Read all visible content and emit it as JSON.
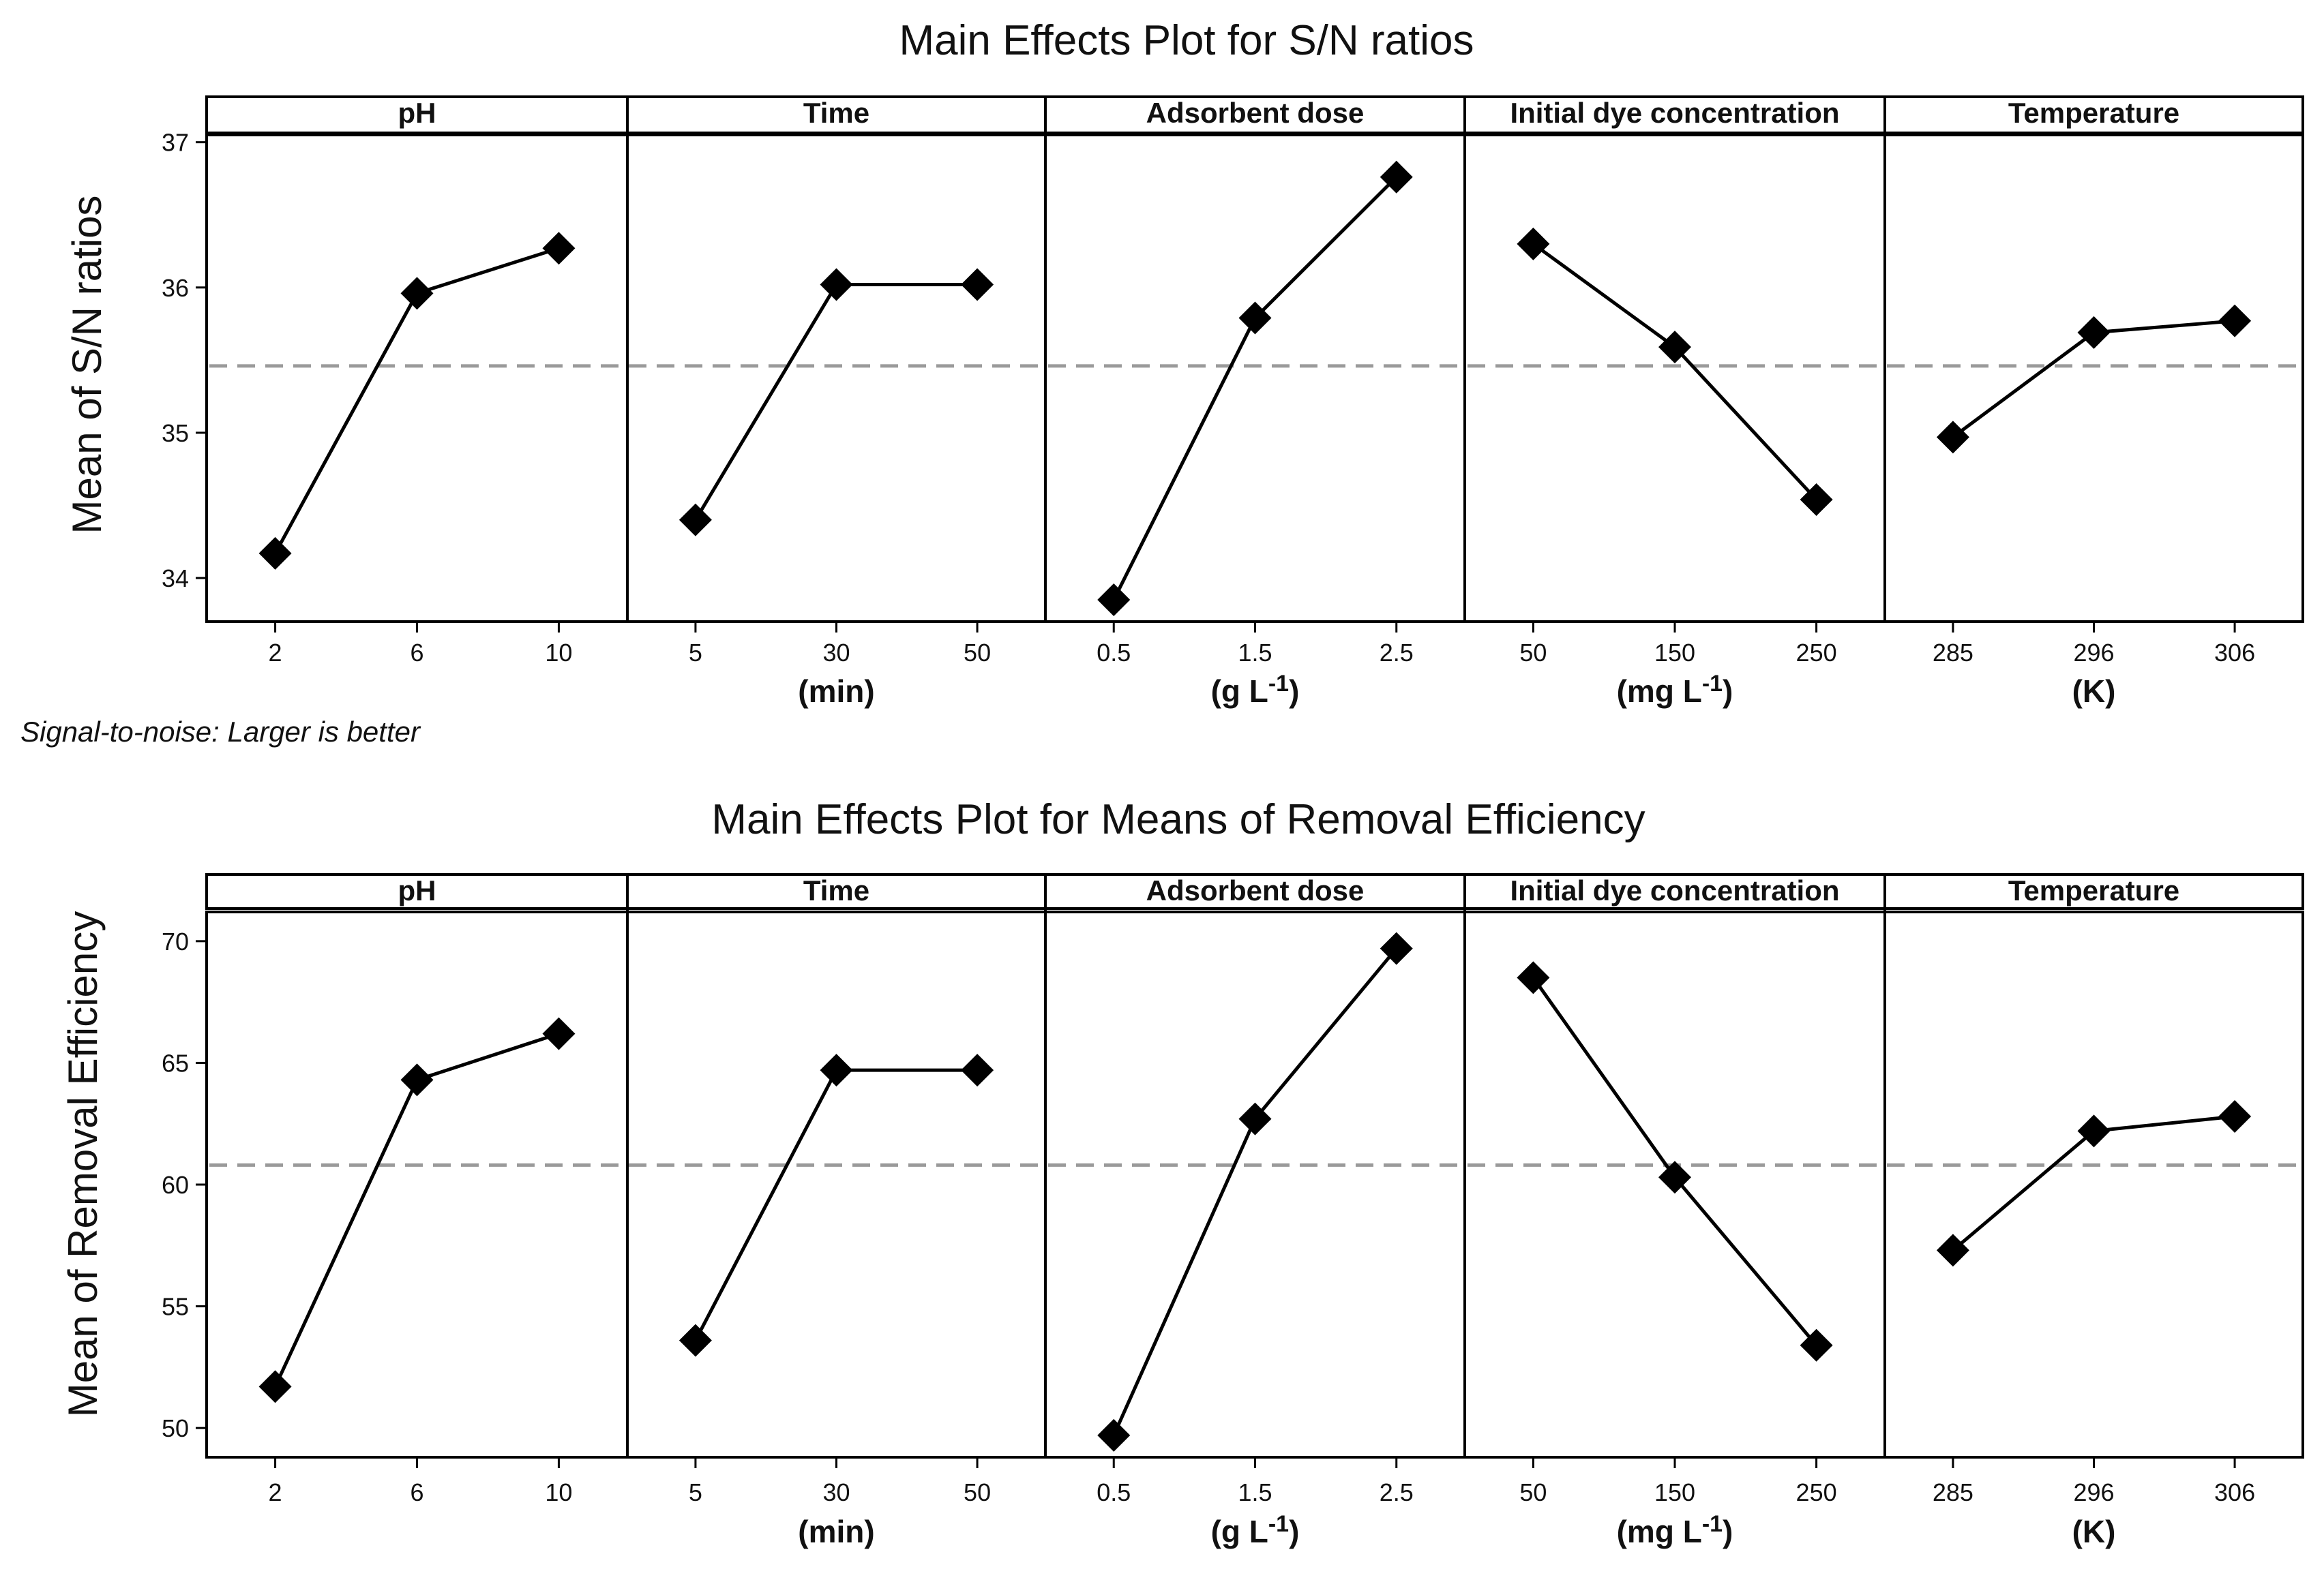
{
  "colors": {
    "line": "#000000",
    "marker": "#000000",
    "mean_line": "#9a9a9a",
    "background": "#ffffff"
  },
  "chart_data": [
    {
      "type": "line",
      "title": "Main Effects Plot for S/N ratios",
      "ylabel": "Mean of S/N ratios",
      "note": "Signal-to-noise: Larger is better",
      "ylim": [
        33.7,
        37.05
      ],
      "yticks": [
        34,
        35,
        36,
        37
      ],
      "grand_mean": 35.46,
      "panels": [
        {
          "name": "pH",
          "unit": "",
          "x": [
            "2",
            "6",
            "10"
          ],
          "values": [
            34.17,
            35.96,
            36.27
          ]
        },
        {
          "name": "Time",
          "unit": "(min)",
          "x": [
            "5",
            "30",
            "50"
          ],
          "values": [
            34.4,
            36.02,
            36.02
          ]
        },
        {
          "name": "Adsorbent dose",
          "unit": "(g L-1)",
          "unit_base": "(g L",
          "unit_sup": "-1",
          "unit_end": ")",
          "x": [
            "0.5",
            "1.5",
            "2.5"
          ],
          "values": [
            33.85,
            35.79,
            36.76
          ]
        },
        {
          "name": "Initial dye concentration",
          "unit": "(mg L-1)",
          "unit_base": "(mg L",
          "unit_sup": "-1",
          "unit_end": ")",
          "x": [
            "50",
            "150",
            "250"
          ],
          "values": [
            36.3,
            35.59,
            34.54
          ]
        },
        {
          "name": "Temperature",
          "unit": "(K)",
          "x": [
            "285",
            "296",
            "306"
          ],
          "values": [
            34.97,
            35.69,
            35.77
          ]
        }
      ]
    },
    {
      "type": "line",
      "title": "Main Effects Plot for Means of Removal Efficiency",
      "ylabel": "Mean of Removal Efficiency",
      "note": "",
      "ylim": [
        48.8,
        71.2
      ],
      "yticks": [
        50,
        55,
        60,
        65,
        70
      ],
      "grand_mean": 60.8,
      "panels": [
        {
          "name": "pH",
          "unit": "",
          "x": [
            "2",
            "6",
            "10"
          ],
          "values": [
            51.7,
            64.3,
            66.2
          ]
        },
        {
          "name": "Time",
          "unit": "(min)",
          "x": [
            "5",
            "30",
            "50"
          ],
          "values": [
            53.6,
            64.7,
            64.7
          ]
        },
        {
          "name": "Adsorbent dose",
          "unit": "(g L-1)",
          "unit_base": "(g L",
          "unit_sup": "-1",
          "unit_end": ")",
          "x": [
            "0.5",
            "1.5",
            "2.5"
          ],
          "values": [
            49.7,
            62.7,
            69.7
          ]
        },
        {
          "name": "Initial dye concentration",
          "unit": "(mg L-1)",
          "unit_base": "(mg L",
          "unit_sup": "-1",
          "unit_end": ")",
          "x": [
            "50",
            "150",
            "250"
          ],
          "values": [
            68.5,
            60.3,
            53.4
          ]
        },
        {
          "name": "Temperature",
          "unit": "(K)",
          "x": [
            "285",
            "296",
            "306"
          ],
          "values": [
            57.3,
            62.2,
            62.8
          ]
        }
      ]
    }
  ]
}
